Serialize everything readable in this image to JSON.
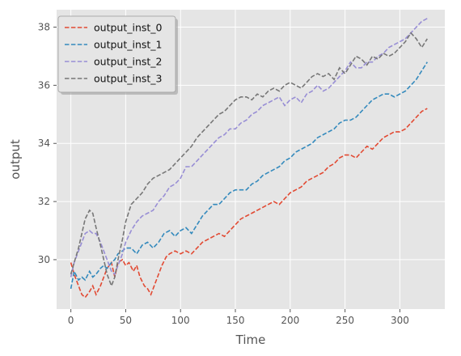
{
  "chart_data": {
    "type": "line",
    "title": "",
    "xlabel": "Time",
    "ylabel": "output",
    "xlim": [
      -13,
      341
    ],
    "ylim": [
      28.3,
      38.6
    ],
    "xticks": [
      0,
      50,
      100,
      150,
      200,
      250,
      300
    ],
    "yticks": [
      30,
      32,
      34,
      36,
      38
    ],
    "grid": true,
    "legend": "top-left",
    "line_style": "dashed",
    "background": "#e5e5e5",
    "series": [
      {
        "name": "output_inst_0",
        "color": "#e24a33",
        "points": [
          [
            0,
            29.9
          ],
          [
            3,
            29.5
          ],
          [
            7,
            29.1
          ],
          [
            10,
            28.8
          ],
          [
            13,
            28.7
          ],
          [
            17,
            28.9
          ],
          [
            20,
            29.1
          ],
          [
            23,
            28.8
          ],
          [
            27,
            29.1
          ],
          [
            30,
            29.4
          ],
          [
            33,
            29.7
          ],
          [
            37,
            29.9
          ],
          [
            40,
            29.4
          ],
          [
            43,
            29.9
          ],
          [
            47,
            30.0
          ],
          [
            50,
            29.8
          ],
          [
            53,
            29.9
          ],
          [
            57,
            29.6
          ],
          [
            60,
            29.8
          ],
          [
            63,
            29.4
          ],
          [
            67,
            29.1
          ],
          [
            70,
            29.0
          ],
          [
            73,
            28.8
          ],
          [
            77,
            29.2
          ],
          [
            80,
            29.5
          ],
          [
            83,
            29.8
          ],
          [
            87,
            30.1
          ],
          [
            90,
            30.2
          ],
          [
            95,
            30.3
          ],
          [
            100,
            30.2
          ],
          [
            105,
            30.3
          ],
          [
            110,
            30.2
          ],
          [
            115,
            30.4
          ],
          [
            120,
            30.6
          ],
          [
            125,
            30.7
          ],
          [
            130,
            30.8
          ],
          [
            135,
            30.9
          ],
          [
            140,
            30.8
          ],
          [
            145,
            31.0
          ],
          [
            150,
            31.2
          ],
          [
            155,
            31.4
          ],
          [
            160,
            31.5
          ],
          [
            165,
            31.6
          ],
          [
            170,
            31.7
          ],
          [
            175,
            31.8
          ],
          [
            180,
            31.9
          ],
          [
            185,
            32.0
          ],
          [
            190,
            31.9
          ],
          [
            195,
            32.1
          ],
          [
            200,
            32.3
          ],
          [
            205,
            32.4
          ],
          [
            210,
            32.5
          ],
          [
            215,
            32.7
          ],
          [
            220,
            32.8
          ],
          [
            225,
            32.9
          ],
          [
            230,
            33.0
          ],
          [
            235,
            33.2
          ],
          [
            240,
            33.3
          ],
          [
            245,
            33.5
          ],
          [
            250,
            33.6
          ],
          [
            255,
            33.6
          ],
          [
            260,
            33.5
          ],
          [
            265,
            33.7
          ],
          [
            270,
            33.9
          ],
          [
            275,
            33.8
          ],
          [
            280,
            34.0
          ],
          [
            285,
            34.2
          ],
          [
            290,
            34.3
          ],
          [
            295,
            34.4
          ],
          [
            300,
            34.4
          ],
          [
            305,
            34.5
          ],
          [
            310,
            34.7
          ],
          [
            315,
            34.9
          ],
          [
            320,
            35.1
          ],
          [
            325,
            35.2
          ]
        ]
      },
      {
        "name": "output_inst_1",
        "color": "#348abd",
        "points": [
          [
            0,
            29.0
          ],
          [
            3,
            29.6
          ],
          [
            7,
            29.3
          ],
          [
            10,
            29.4
          ],
          [
            13,
            29.3
          ],
          [
            17,
            29.6
          ],
          [
            20,
            29.4
          ],
          [
            23,
            29.5
          ],
          [
            27,
            29.7
          ],
          [
            30,
            29.8
          ],
          [
            33,
            29.7
          ],
          [
            37,
            29.9
          ],
          [
            40,
            30.0
          ],
          [
            43,
            30.2
          ],
          [
            47,
            30.3
          ],
          [
            50,
            30.4
          ],
          [
            55,
            30.4
          ],
          [
            60,
            30.2
          ],
          [
            65,
            30.5
          ],
          [
            70,
            30.6
          ],
          [
            75,
            30.4
          ],
          [
            80,
            30.6
          ],
          [
            85,
            30.9
          ],
          [
            90,
            31.0
          ],
          [
            95,
            30.8
          ],
          [
            100,
            31.0
          ],
          [
            105,
            31.1
          ],
          [
            110,
            30.9
          ],
          [
            115,
            31.2
          ],
          [
            120,
            31.5
          ],
          [
            125,
            31.7
          ],
          [
            130,
            31.9
          ],
          [
            135,
            31.9
          ],
          [
            140,
            32.1
          ],
          [
            145,
            32.3
          ],
          [
            150,
            32.4
          ],
          [
            155,
            32.4
          ],
          [
            160,
            32.4
          ],
          [
            165,
            32.6
          ],
          [
            170,
            32.7
          ],
          [
            175,
            32.9
          ],
          [
            180,
            33.0
          ],
          [
            185,
            33.1
          ],
          [
            190,
            33.2
          ],
          [
            195,
            33.4
          ],
          [
            200,
            33.5
          ],
          [
            205,
            33.7
          ],
          [
            210,
            33.8
          ],
          [
            215,
            33.9
          ],
          [
            220,
            34.0
          ],
          [
            225,
            34.2
          ],
          [
            230,
            34.3
          ],
          [
            235,
            34.4
          ],
          [
            240,
            34.5
          ],
          [
            245,
            34.7
          ],
          [
            250,
            34.8
          ],
          [
            255,
            34.8
          ],
          [
            260,
            34.9
          ],
          [
            265,
            35.1
          ],
          [
            270,
            35.3
          ],
          [
            275,
            35.5
          ],
          [
            280,
            35.6
          ],
          [
            285,
            35.7
          ],
          [
            290,
            35.7
          ],
          [
            295,
            35.6
          ],
          [
            300,
            35.7
          ],
          [
            305,
            35.8
          ],
          [
            310,
            36.0
          ],
          [
            315,
            36.2
          ],
          [
            320,
            36.5
          ],
          [
            325,
            36.8
          ]
        ]
      },
      {
        "name": "output_inst_2",
        "color": "#988ed5",
        "points": [
          [
            0,
            29.4
          ],
          [
            3,
            29.9
          ],
          [
            7,
            30.3
          ],
          [
            10,
            30.6
          ],
          [
            13,
            30.9
          ],
          [
            17,
            31.0
          ],
          [
            20,
            30.9
          ],
          [
            23,
            30.9
          ],
          [
            27,
            30.6
          ],
          [
            30,
            30.3
          ],
          [
            33,
            30.0
          ],
          [
            37,
            29.6
          ],
          [
            40,
            29.5
          ],
          [
            43,
            29.8
          ],
          [
            47,
            30.2
          ],
          [
            50,
            30.6
          ],
          [
            55,
            31.0
          ],
          [
            60,
            31.3
          ],
          [
            65,
            31.5
          ],
          [
            70,
            31.6
          ],
          [
            75,
            31.7
          ],
          [
            80,
            32.0
          ],
          [
            85,
            32.2
          ],
          [
            90,
            32.5
          ],
          [
            95,
            32.6
          ],
          [
            100,
            32.8
          ],
          [
            105,
            33.2
          ],
          [
            110,
            33.2
          ],
          [
            115,
            33.4
          ],
          [
            120,
            33.6
          ],
          [
            125,
            33.8
          ],
          [
            130,
            34.0
          ],
          [
            135,
            34.2
          ],
          [
            140,
            34.3
          ],
          [
            145,
            34.5
          ],
          [
            150,
            34.5
          ],
          [
            155,
            34.7
          ],
          [
            160,
            34.8
          ],
          [
            165,
            35.0
          ],
          [
            170,
            35.1
          ],
          [
            175,
            35.3
          ],
          [
            180,
            35.4
          ],
          [
            185,
            35.5
          ],
          [
            190,
            35.6
          ],
          [
            195,
            35.3
          ],
          [
            200,
            35.5
          ],
          [
            205,
            35.6
          ],
          [
            210,
            35.4
          ],
          [
            215,
            35.7
          ],
          [
            220,
            35.8
          ],
          [
            225,
            36.0
          ],
          [
            230,
            35.8
          ],
          [
            235,
            35.9
          ],
          [
            240,
            36.1
          ],
          [
            245,
            36.3
          ],
          [
            250,
            36.5
          ],
          [
            255,
            36.8
          ],
          [
            260,
            36.6
          ],
          [
            265,
            36.6
          ],
          [
            270,
            36.8
          ],
          [
            275,
            36.8
          ],
          [
            280,
            37.0
          ],
          [
            285,
            37.1
          ],
          [
            290,
            37.3
          ],
          [
            295,
            37.4
          ],
          [
            300,
            37.5
          ],
          [
            305,
            37.6
          ],
          [
            310,
            37.8
          ],
          [
            315,
            38.0
          ],
          [
            320,
            38.2
          ],
          [
            325,
            38.3
          ]
        ]
      },
      {
        "name": "output_inst_3",
        "color": "#777777",
        "points": [
          [
            0,
            29.5
          ],
          [
            3,
            29.9
          ],
          [
            7,
            30.4
          ],
          [
            10,
            30.9
          ],
          [
            13,
            31.4
          ],
          [
            17,
            31.7
          ],
          [
            20,
            31.6
          ],
          [
            23,
            31.1
          ],
          [
            27,
            30.5
          ],
          [
            30,
            30.0
          ],
          [
            33,
            29.5
          ],
          [
            37,
            29.1
          ],
          [
            40,
            29.4
          ],
          [
            43,
            30.0
          ],
          [
            47,
            30.7
          ],
          [
            50,
            31.3
          ],
          [
            55,
            31.9
          ],
          [
            60,
            32.1
          ],
          [
            65,
            32.3
          ],
          [
            70,
            32.6
          ],
          [
            75,
            32.8
          ],
          [
            80,
            32.9
          ],
          [
            85,
            33.0
          ],
          [
            90,
            33.1
          ],
          [
            95,
            33.3
          ],
          [
            100,
            33.5
          ],
          [
            105,
            33.7
          ],
          [
            110,
            33.9
          ],
          [
            115,
            34.2
          ],
          [
            120,
            34.4
          ],
          [
            125,
            34.6
          ],
          [
            130,
            34.8
          ],
          [
            135,
            35.0
          ],
          [
            140,
            35.1
          ],
          [
            145,
            35.3
          ],
          [
            150,
            35.5
          ],
          [
            155,
            35.6
          ],
          [
            160,
            35.6
          ],
          [
            165,
            35.5
          ],
          [
            170,
            35.7
          ],
          [
            175,
            35.6
          ],
          [
            180,
            35.8
          ],
          [
            185,
            35.9
          ],
          [
            190,
            35.8
          ],
          [
            195,
            36.0
          ],
          [
            200,
            36.1
          ],
          [
            205,
            36.0
          ],
          [
            210,
            35.9
          ],
          [
            215,
            36.1
          ],
          [
            220,
            36.3
          ],
          [
            225,
            36.4
          ],
          [
            230,
            36.3
          ],
          [
            235,
            36.4
          ],
          [
            240,
            36.2
          ],
          [
            245,
            36.6
          ],
          [
            250,
            36.4
          ],
          [
            255,
            36.7
          ],
          [
            260,
            37.0
          ],
          [
            265,
            36.9
          ],
          [
            270,
            36.7
          ],
          [
            275,
            37.0
          ],
          [
            280,
            36.9
          ],
          [
            285,
            37.1
          ],
          [
            290,
            37.0
          ],
          [
            295,
            37.1
          ],
          [
            300,
            37.3
          ],
          [
            305,
            37.5
          ],
          [
            310,
            37.8
          ],
          [
            315,
            37.6
          ],
          [
            320,
            37.3
          ],
          [
            325,
            37.6
          ]
        ]
      }
    ]
  }
}
